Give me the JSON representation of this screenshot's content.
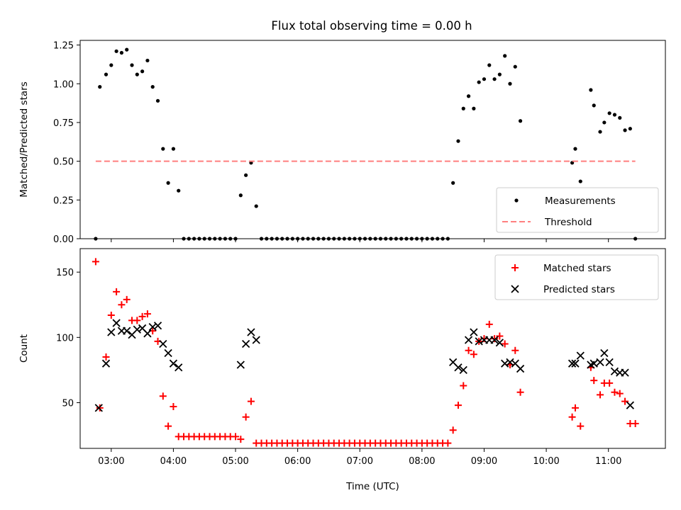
{
  "chart_data": [
    {
      "type": "scatter",
      "title": "Flux total observing time = 0.00 h",
      "ylabel": "Matched/Predicted stars",
      "xlabel": "",
      "xlim": [
        "02:30",
        "11:55"
      ],
      "ylim": [
        0.0,
        1.28
      ],
      "x_ticks": [
        "03:00",
        "04:00",
        "05:00",
        "06:00",
        "07:00",
        "08:00",
        "09:00",
        "10:00",
        "11:00"
      ],
      "y_ticks": [
        "0.00",
        "0.25",
        "0.50",
        "0.75",
        "1.00",
        "1.25"
      ],
      "legend_position": "lower right",
      "series": [
        {
          "name": "Measurements",
          "marker": "dot",
          "color": "#000000",
          "points": [
            [
              "02:45",
              0.0
            ],
            [
              "02:49",
              0.98
            ],
            [
              "02:55",
              1.06
            ],
            [
              "03:00",
              1.12
            ],
            [
              "03:05",
              1.21
            ],
            [
              "03:10",
              1.2
            ],
            [
              "03:15",
              1.22
            ],
            [
              "03:20",
              1.12
            ],
            [
              "03:25",
              1.06
            ],
            [
              "03:30",
              1.08
            ],
            [
              "03:35",
              1.15
            ],
            [
              "03:40",
              0.98
            ],
            [
              "03:45",
              0.89
            ],
            [
              "03:50",
              0.58
            ],
            [
              "03:55",
              0.36
            ],
            [
              "04:00",
              0.58
            ],
            [
              "04:05",
              0.31
            ],
            [
              "04:10",
              0.0
            ],
            [
              "04:15",
              0.0
            ],
            [
              "04:20",
              0.0
            ],
            [
              "04:25",
              0.0
            ],
            [
              "04:30",
              0.0
            ],
            [
              "04:35",
              0.0
            ],
            [
              "04:40",
              0.0
            ],
            [
              "04:45",
              0.0
            ],
            [
              "04:50",
              0.0
            ],
            [
              "04:55",
              0.0
            ],
            [
              "05:00",
              0.0
            ],
            [
              "05:05",
              0.28
            ],
            [
              "05:10",
              0.41
            ],
            [
              "05:15",
              0.49
            ],
            [
              "05:20",
              0.21
            ],
            [
              "05:25",
              0.0
            ],
            [
              "05:30",
              0.0
            ],
            [
              "05:35",
              0.0
            ],
            [
              "05:40",
              0.0
            ],
            [
              "05:45",
              0.0
            ],
            [
              "05:50",
              0.0
            ],
            [
              "05:55",
              0.0
            ],
            [
              "06:00",
              0.0
            ],
            [
              "06:05",
              0.0
            ],
            [
              "06:10",
              0.0
            ],
            [
              "06:15",
              0.0
            ],
            [
              "06:20",
              0.0
            ],
            [
              "06:25",
              0.0
            ],
            [
              "06:30",
              0.0
            ],
            [
              "06:35",
              0.0
            ],
            [
              "06:40",
              0.0
            ],
            [
              "06:45",
              0.0
            ],
            [
              "06:50",
              0.0
            ],
            [
              "06:55",
              0.0
            ],
            [
              "07:00",
              0.0
            ],
            [
              "07:05",
              0.0
            ],
            [
              "07:10",
              0.0
            ],
            [
              "07:15",
              0.0
            ],
            [
              "07:20",
              0.0
            ],
            [
              "07:25",
              0.0
            ],
            [
              "07:30",
              0.0
            ],
            [
              "07:35",
              0.0
            ],
            [
              "07:40",
              0.0
            ],
            [
              "07:45",
              0.0
            ],
            [
              "07:50",
              0.0
            ],
            [
              "07:55",
              0.0
            ],
            [
              "08:00",
              0.0
            ],
            [
              "08:05",
              0.0
            ],
            [
              "08:10",
              0.0
            ],
            [
              "08:15",
              0.0
            ],
            [
              "08:20",
              0.0
            ],
            [
              "08:25",
              0.0
            ],
            [
              "08:30",
              0.36
            ],
            [
              "08:35",
              0.63
            ],
            [
              "08:40",
              0.84
            ],
            [
              "08:45",
              0.92
            ],
            [
              "08:50",
              0.84
            ],
            [
              "08:55",
              1.01
            ],
            [
              "09:00",
              1.03
            ],
            [
              "09:05",
              1.12
            ],
            [
              "09:10",
              1.03
            ],
            [
              "09:15",
              1.06
            ],
            [
              "09:20",
              1.18
            ],
            [
              "09:25",
              1.0
            ],
            [
              "09:30",
              1.11
            ],
            [
              "09:35",
              0.76
            ],
            [
              "10:25",
              0.49
            ],
            [
              "10:28",
              0.58
            ],
            [
              "10:33",
              0.37
            ],
            [
              "10:43",
              0.96
            ],
            [
              "10:46",
              0.86
            ],
            [
              "10:52",
              0.69
            ],
            [
              "10:56",
              0.75
            ],
            [
              "11:01",
              0.81
            ],
            [
              "11:06",
              0.8
            ],
            [
              "11:11",
              0.78
            ],
            [
              "11:16",
              0.7
            ],
            [
              "11:21",
              0.71
            ],
            [
              "11:26",
              0.0
            ]
          ]
        },
        {
          "name": "Threshold",
          "marker": "dashed-line",
          "color": "#ff7f7f",
          "points": [
            [
              "02:45",
              0.5
            ],
            [
              "11:26",
              0.5
            ]
          ]
        }
      ]
    },
    {
      "type": "scatter",
      "title": "",
      "ylabel": "Count",
      "xlabel": "Time (UTC)",
      "xlim": [
        "02:30",
        "11:55"
      ],
      "ylim": [
        15,
        168
      ],
      "x_ticks": [
        "03:00",
        "04:00",
        "05:00",
        "06:00",
        "07:00",
        "08:00",
        "09:00",
        "10:00",
        "11:00"
      ],
      "y_ticks": [
        "50",
        "100",
        "150"
      ],
      "legend_position": "upper right",
      "series": [
        {
          "name": "Matched stars",
          "marker": "plus",
          "color": "#ff0000",
          "points": [
            [
              "02:45",
              158
            ],
            [
              "02:49",
              46
            ],
            [
              "02:55",
              85
            ],
            [
              "03:00",
              117
            ],
            [
              "03:05",
              135
            ],
            [
              "03:10",
              125
            ],
            [
              "03:15",
              129
            ],
            [
              "03:20",
              113
            ],
            [
              "03:25",
              113
            ],
            [
              "03:30",
              116
            ],
            [
              "03:35",
              118
            ],
            [
              "03:40",
              105
            ],
            [
              "03:45",
              97
            ],
            [
              "03:50",
              55
            ],
            [
              "03:55",
              32
            ],
            [
              "04:00",
              47
            ],
            [
              "04:05",
              24
            ],
            [
              "04:10",
              24
            ],
            [
              "04:15",
              24
            ],
            [
              "04:20",
              24
            ],
            [
              "04:25",
              24
            ],
            [
              "04:30",
              24
            ],
            [
              "04:35",
              24
            ],
            [
              "04:40",
              24
            ],
            [
              "04:45",
              24
            ],
            [
              "04:50",
              24
            ],
            [
              "04:55",
              24
            ],
            [
              "05:00",
              24
            ],
            [
              "05:05",
              22
            ],
            [
              "05:10",
              39
            ],
            [
              "05:15",
              51
            ],
            [
              "05:20",
              19
            ],
            [
              "05:25",
              19
            ],
            [
              "05:30",
              19
            ],
            [
              "05:35",
              19
            ],
            [
              "05:40",
              19
            ],
            [
              "05:45",
              19
            ],
            [
              "05:50",
              19
            ],
            [
              "05:55",
              19
            ],
            [
              "06:00",
              19
            ],
            [
              "06:05",
              19
            ],
            [
              "06:10",
              19
            ],
            [
              "06:15",
              19
            ],
            [
              "06:20",
              19
            ],
            [
              "06:25",
              19
            ],
            [
              "06:30",
              19
            ],
            [
              "06:35",
              19
            ],
            [
              "06:40",
              19
            ],
            [
              "06:45",
              19
            ],
            [
              "06:50",
              19
            ],
            [
              "06:55",
              19
            ],
            [
              "07:00",
              19
            ],
            [
              "07:05",
              19
            ],
            [
              "07:10",
              19
            ],
            [
              "07:15",
              19
            ],
            [
              "07:20",
              19
            ],
            [
              "07:25",
              19
            ],
            [
              "07:30",
              19
            ],
            [
              "07:35",
              19
            ],
            [
              "07:40",
              19
            ],
            [
              "07:45",
              19
            ],
            [
              "07:50",
              19
            ],
            [
              "07:55",
              19
            ],
            [
              "08:00",
              19
            ],
            [
              "08:05",
              19
            ],
            [
              "08:10",
              19
            ],
            [
              "08:15",
              19
            ],
            [
              "08:20",
              19
            ],
            [
              "08:25",
              19
            ],
            [
              "08:30",
              29
            ],
            [
              "08:35",
              48
            ],
            [
              "08:40",
              63
            ],
            [
              "08:45",
              90
            ],
            [
              "08:50",
              87
            ],
            [
              "08:55",
              97
            ],
            [
              "09:00",
              99
            ],
            [
              "09:05",
              110
            ],
            [
              "09:10",
              99
            ],
            [
              "09:15",
              101
            ],
            [
              "09:20",
              95
            ],
            [
              "09:25",
              79
            ],
            [
              "09:30",
              90
            ],
            [
              "09:35",
              58
            ],
            [
              "10:25",
              39
            ],
            [
              "10:28",
              46
            ],
            [
              "10:33",
              32
            ],
            [
              "10:43",
              77
            ],
            [
              "10:46",
              67
            ],
            [
              "10:52",
              56
            ],
            [
              "10:56",
              65
            ],
            [
              "11:01",
              65
            ],
            [
              "11:06",
              58
            ],
            [
              "11:11",
              57
            ],
            [
              "11:16",
              51
            ],
            [
              "11:21",
              34
            ],
            [
              "11:26",
              34
            ]
          ]
        },
        {
          "name": "Predicted stars",
          "marker": "x",
          "color": "#000000",
          "points": [
            [
              "02:48",
              46
            ],
            [
              "02:55",
              80
            ],
            [
              "03:00",
              104
            ],
            [
              "03:05",
              111
            ],
            [
              "03:10",
              105
            ],
            [
              "03:15",
              105
            ],
            [
              "03:20",
              102
            ],
            [
              "03:25",
              106
            ],
            [
              "03:30",
              107
            ],
            [
              "03:35",
              103
            ],
            [
              "03:40",
              108
            ],
            [
              "03:45",
              109
            ],
            [
              "03:50",
              95
            ],
            [
              "03:55",
              88
            ],
            [
              "04:00",
              80
            ],
            [
              "04:05",
              77
            ],
            [
              "05:05",
              79
            ],
            [
              "05:10",
              95
            ],
            [
              "05:15",
              104
            ],
            [
              "05:20",
              98
            ],
            [
              "08:30",
              81
            ],
            [
              "08:35",
              77
            ],
            [
              "08:40",
              75
            ],
            [
              "08:45",
              98
            ],
            [
              "08:50",
              104
            ],
            [
              "08:55",
              97
            ],
            [
              "09:00",
              98
            ],
            [
              "09:05",
              98
            ],
            [
              "09:10",
              98
            ],
            [
              "09:15",
              96
            ],
            [
              "09:20",
              80
            ],
            [
              "09:25",
              81
            ],
            [
              "09:30",
              80
            ],
            [
              "09:35",
              76
            ],
            [
              "10:25",
              80
            ],
            [
              "10:28",
              80
            ],
            [
              "10:33",
              86
            ],
            [
              "10:43",
              79
            ],
            [
              "10:46",
              80
            ],
            [
              "10:52",
              81
            ],
            [
              "10:56",
              88
            ],
            [
              "11:01",
              81
            ],
            [
              "11:06",
              74
            ],
            [
              "11:11",
              73
            ],
            [
              "11:16",
              73
            ],
            [
              "11:21",
              48
            ]
          ]
        }
      ]
    }
  ]
}
